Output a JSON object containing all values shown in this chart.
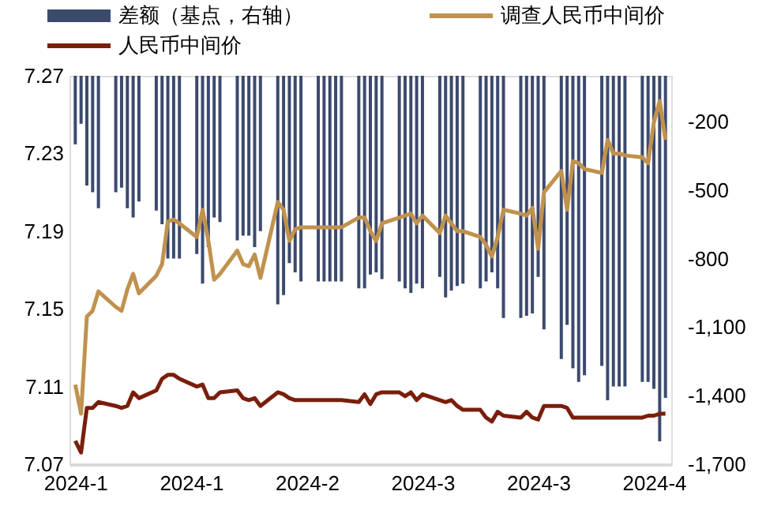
{
  "chart_data": {
    "type": "line",
    "legend": "top",
    "grid": false,
    "x": [
      "2024-01-01",
      "2024-01-02",
      "2024-01-03",
      "2024-01-04",
      "2024-01-05",
      "2024-01-08",
      "2024-01-09",
      "2024-01-10",
      "2024-01-11",
      "2024-01-12",
      "2024-01-15",
      "2024-01-16",
      "2024-01-17",
      "2024-01-18",
      "2024-01-19",
      "2024-01-22",
      "2024-01-23",
      "2024-01-24",
      "2024-01-25",
      "2024-01-26",
      "2024-01-29",
      "2024-01-30",
      "2024-01-31",
      "2024-02-01",
      "2024-02-02",
      "2024-02-05",
      "2024-02-06",
      "2024-02-07",
      "2024-02-08",
      "2024-02-09",
      "2024-02-12",
      "2024-02-13",
      "2024-02-14",
      "2024-02-15",
      "2024-02-16",
      "2024-02-19",
      "2024-02-20",
      "2024-02-21",
      "2024-02-22",
      "2024-02-23",
      "2024-02-26",
      "2024-02-27",
      "2024-02-28",
      "2024-02-29",
      "2024-03-01",
      "2024-03-04",
      "2024-03-05",
      "2024-03-06",
      "2024-03-07",
      "2024-03-08",
      "2024-03-11",
      "2024-03-12",
      "2024-03-13",
      "2024-03-14",
      "2024-03-15",
      "2024-03-18",
      "2024-03-19",
      "2024-03-20",
      "2024-03-21",
      "2024-03-22",
      "2024-03-25",
      "2024-03-26",
      "2024-03-27",
      "2024-03-28",
      "2024-03-29",
      "2024-04-01",
      "2024-04-02",
      "2024-04-03",
      "2024-04-04",
      "2024-04-05",
      "2024-04-08",
      "2024-04-09",
      "2024-04-10",
      "2024-04-11",
      "2024-04-12"
    ],
    "xlim": [
      "2023-12-31",
      "2024-04-13"
    ],
    "xticks": [
      {
        "value": "2024-01-01",
        "label": "2024-1"
      },
      {
        "value": "2024-01-21",
        "label": "2024-1"
      },
      {
        "value": "2024-02-10",
        "label": "2024-2"
      },
      {
        "value": "2024-03-01",
        "label": "2024-3"
      },
      {
        "value": "2024-03-21",
        "label": "2024-3"
      },
      {
        "value": "2024-04-10",
        "label": "2024-4"
      }
    ],
    "ylim": [
      7.07,
      7.27
    ],
    "yticks": [
      7.07,
      7.11,
      7.15,
      7.19,
      7.23,
      7.27
    ],
    "y2lim": [
      -1700,
      0
    ],
    "y2ticks": [
      -200,
      -500,
      -800,
      {
        "value": -1100,
        "label": "-1,100"
      },
      {
        "value": -1400,
        "label": "-1,400"
      },
      {
        "value": -1700,
        "label": "-1,700"
      }
    ],
    "series": [
      {
        "name": "差额（基点，右轴）",
        "type": "bar",
        "axis": "y2",
        "color": "#3c4a6e",
        "values": [
          -300,
          -210,
          -480,
          -510,
          -580,
          -510,
          -490,
          -580,
          -620,
          -550,
          -590,
          -650,
          -800,
          -800,
          -800,
          -780,
          -910,
          -750,
          -620,
          -640,
          -720,
          -700,
          -700,
          -750,
          -680,
          -1000,
          -960,
          -820,
          -860,
          -900,
          -900,
          -900,
          -900,
          -900,
          -900,
          -930,
          -930,
          -870,
          -860,
          -890,
          -900,
          -930,
          -950,
          -910,
          -930,
          -880,
          -970,
          -940,
          -920,
          -910,
          -930,
          -900,
          -860,
          -930,
          -1060,
          -1060,
          -1050,
          -1040,
          -880,
          -1110,
          -1240,
          -1090,
          -1280,
          -1340,
          -1310,
          -1270,
          -1420,
          -1360,
          -1360,
          -1360,
          -1340,
          -1340,
          -1370,
          -1600,
          -1410
        ]
      },
      {
        "name": "调查人民币中间价",
        "color": "#c0924e",
        "values": [
          7.111,
          7.096,
          7.146,
          7.149,
          7.159,
          7.151,
          7.149,
          7.16,
          7.168,
          7.158,
          7.167,
          7.173,
          7.195,
          7.196,
          7.194,
          7.187,
          7.201,
          7.185,
          7.165,
          7.168,
          7.18,
          7.173,
          7.172,
          7.178,
          7.166,
          7.205,
          7.201,
          7.185,
          7.191,
          7.192,
          7.192,
          7.192,
          7.192,
          7.192,
          7.192,
          7.197,
          7.197,
          7.19,
          7.185,
          7.194,
          7.197,
          7.198,
          7.199,
          7.194,
          7.198,
          7.189,
          7.198,
          7.194,
          7.19,
          7.19,
          7.187,
          7.183,
          7.177,
          7.187,
          7.201,
          7.199,
          7.198,
          7.202,
          7.181,
          7.21,
          7.221,
          7.201,
          7.226,
          7.225,
          7.222,
          7.22,
          7.237,
          7.23,
          7.23,
          7.229,
          7.228,
          7.225,
          7.246,
          7.257,
          7.237
        ]
      },
      {
        "name": "人民币中间价",
        "color": "#7a1e0c",
        "values": [
          7.082,
          7.076,
          7.099,
          7.099,
          7.102,
          7.1,
          7.099,
          7.1,
          7.107,
          7.104,
          7.108,
          7.114,
          7.116,
          7.116,
          7.114,
          7.11,
          7.111,
          7.104,
          7.104,
          7.107,
          7.108,
          7.104,
          7.103,
          7.104,
          7.1,
          7.107,
          7.106,
          7.104,
          7.103,
          7.103,
          7.103,
          7.103,
          7.103,
          7.103,
          7.103,
          7.102,
          7.106,
          7.101,
          7.106,
          7.107,
          7.107,
          7.105,
          7.107,
          7.103,
          7.106,
          7.103,
          7.102,
          7.103,
          7.1,
          7.098,
          7.098,
          7.094,
          7.092,
          7.097,
          7.095,
          7.094,
          7.097,
          7.094,
          7.093,
          7.1,
          7.1,
          7.099,
          7.094,
          7.094,
          7.094,
          7.094,
          7.094,
          7.094,
          7.094,
          7.094,
          7.094,
          7.095,
          7.095,
          7.096,
          7.096
        ]
      }
    ]
  }
}
